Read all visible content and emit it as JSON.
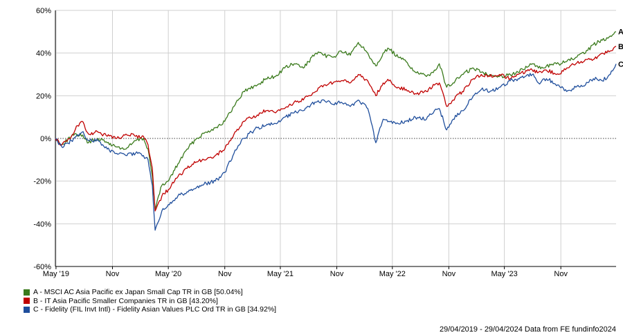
{
  "chart_data": {
    "type": "line",
    "x_range": [
      "2019-04-29",
      "2024-04-29"
    ],
    "ylim": [
      -60,
      60
    ],
    "y_ticks": [
      60,
      40,
      20,
      0,
      -20,
      -40,
      -60
    ],
    "y_tick_labels": [
      "60%",
      "40%",
      "20%",
      "0%",
      "-20%",
      "-40%",
      "-60%"
    ],
    "x_ticks": [
      "2019-05-01",
      "2019-11-01",
      "2020-05-01",
      "2020-11-01",
      "2021-05-01",
      "2021-11-01",
      "2022-05-01",
      "2022-11-01",
      "2023-05-01",
      "2023-11-01"
    ],
    "x_tick_labels": [
      "May '19",
      "Nov",
      "May '20",
      "Nov",
      "May '21",
      "Nov",
      "May '22",
      "Nov",
      "May '23",
      "Nov"
    ],
    "grid": true,
    "zero_line": "dotted",
    "legend_placement": "bottom-left",
    "series": [
      {
        "key": "A",
        "name": "A - MSCI AC Asia Pacific ex Japan Small Cap TR in GB [50.04%]",
        "color": "#3a7a1c",
        "points": [
          [
            "2019-04-29",
            0
          ],
          [
            "2019-05-20",
            -3
          ],
          [
            "2019-06-20",
            1
          ],
          [
            "2019-07-20",
            2
          ],
          [
            "2019-08-15",
            -2
          ],
          [
            "2019-09-15",
            0
          ],
          [
            "2019-10-15",
            -2
          ],
          [
            "2019-11-15",
            -4
          ],
          [
            "2019-12-15",
            -5
          ],
          [
            "2020-01-15",
            -1
          ],
          [
            "2020-02-10",
            0
          ],
          [
            "2020-02-25",
            -5
          ],
          [
            "2020-03-10",
            -18
          ],
          [
            "2020-03-19",
            -33
          ],
          [
            "2020-04-10",
            -22
          ],
          [
            "2020-05-01",
            -20
          ],
          [
            "2020-06-01",
            -12
          ],
          [
            "2020-07-01",
            -5
          ],
          [
            "2020-08-01",
            0
          ],
          [
            "2020-09-01",
            3
          ],
          [
            "2020-10-01",
            5
          ],
          [
            "2020-11-01",
            8
          ],
          [
            "2020-12-01",
            15
          ],
          [
            "2021-01-01",
            22
          ],
          [
            "2021-02-15",
            25
          ],
          [
            "2021-03-15",
            28
          ],
          [
            "2021-04-15",
            29
          ],
          [
            "2021-05-15",
            33
          ],
          [
            "2021-06-15",
            35
          ],
          [
            "2021-07-15",
            33
          ],
          [
            "2021-08-01",
            36
          ],
          [
            "2021-08-25",
            40
          ],
          [
            "2021-09-20",
            39
          ],
          [
            "2021-10-20",
            38
          ],
          [
            "2021-11-15",
            41
          ],
          [
            "2021-12-15",
            39
          ],
          [
            "2022-01-10",
            45
          ],
          [
            "2022-02-10",
            40
          ],
          [
            "2022-03-08",
            34
          ],
          [
            "2022-04-01",
            40
          ],
          [
            "2022-04-20",
            42
          ],
          [
            "2022-05-20",
            38
          ],
          [
            "2022-06-15",
            36
          ],
          [
            "2022-07-15",
            31
          ],
          [
            "2022-08-20",
            29
          ],
          [
            "2022-09-15",
            32
          ],
          [
            "2022-10-01",
            35
          ],
          [
            "2022-10-25",
            24
          ],
          [
            "2022-11-15",
            26
          ],
          [
            "2022-12-15",
            30
          ],
          [
            "2023-01-20",
            33
          ],
          [
            "2023-02-15",
            31
          ],
          [
            "2023-03-15",
            30
          ],
          [
            "2023-04-15",
            29
          ],
          [
            "2023-05-20",
            30
          ],
          [
            "2023-06-15",
            31
          ],
          [
            "2023-07-31",
            35
          ],
          [
            "2023-08-20",
            33
          ],
          [
            "2023-09-15",
            34
          ],
          [
            "2023-10-25",
            35
          ],
          [
            "2023-11-20",
            36
          ],
          [
            "2023-12-20",
            38
          ],
          [
            "2024-01-20",
            40
          ],
          [
            "2024-02-15",
            44
          ],
          [
            "2024-03-15",
            46
          ],
          [
            "2024-04-10",
            48
          ],
          [
            "2024-04-29",
            50.04
          ]
        ]
      },
      {
        "key": "B",
        "name": "B - IT Asia Pacific Smaller Companies TR in GB [43.20%]",
        "color": "#c00000",
        "points": [
          [
            "2019-04-29",
            0
          ],
          [
            "2019-05-20",
            -3
          ],
          [
            "2019-06-20",
            1
          ],
          [
            "2019-07-10",
            6
          ],
          [
            "2019-07-25",
            8
          ],
          [
            "2019-08-15",
            2
          ],
          [
            "2019-09-15",
            3
          ],
          [
            "2019-10-15",
            1
          ],
          [
            "2019-11-15",
            0
          ],
          [
            "2019-12-15",
            2
          ],
          [
            "2020-01-15",
            1
          ],
          [
            "2020-02-10",
            1
          ],
          [
            "2020-02-25",
            -3
          ],
          [
            "2020-03-10",
            -14
          ],
          [
            "2020-03-19",
            -34
          ],
          [
            "2020-04-10",
            -27
          ],
          [
            "2020-05-01",
            -24
          ],
          [
            "2020-06-01",
            -18
          ],
          [
            "2020-07-01",
            -14
          ],
          [
            "2020-08-01",
            -11
          ],
          [
            "2020-09-01",
            -10
          ],
          [
            "2020-10-01",
            -8
          ],
          [
            "2020-11-01",
            -5
          ],
          [
            "2020-12-01",
            2
          ],
          [
            "2021-01-01",
            8
          ],
          [
            "2021-02-15",
            11
          ],
          [
            "2021-03-15",
            13
          ],
          [
            "2021-04-15",
            12
          ],
          [
            "2021-05-15",
            14
          ],
          [
            "2021-06-15",
            17
          ],
          [
            "2021-07-15",
            18
          ],
          [
            "2021-08-01",
            20
          ],
          [
            "2021-08-25",
            22
          ],
          [
            "2021-09-20",
            25
          ],
          [
            "2021-10-20",
            26
          ],
          [
            "2021-11-15",
            27
          ],
          [
            "2021-12-15",
            26
          ],
          [
            "2022-01-10",
            30
          ],
          [
            "2022-02-10",
            27
          ],
          [
            "2022-03-08",
            20
          ],
          [
            "2022-04-01",
            26
          ],
          [
            "2022-04-20",
            27
          ],
          [
            "2022-05-20",
            24
          ],
          [
            "2022-06-15",
            23
          ],
          [
            "2022-07-15",
            21
          ],
          [
            "2022-08-20",
            22
          ],
          [
            "2022-09-15",
            25
          ],
          [
            "2022-10-01",
            26
          ],
          [
            "2022-10-25",
            15
          ],
          [
            "2022-11-15",
            18
          ],
          [
            "2022-12-15",
            22
          ],
          [
            "2023-01-20",
            28
          ],
          [
            "2023-02-15",
            30
          ],
          [
            "2023-03-15",
            29
          ],
          [
            "2023-04-15",
            30
          ],
          [
            "2023-05-20",
            28
          ],
          [
            "2023-06-15",
            30
          ],
          [
            "2023-07-31",
            32
          ],
          [
            "2023-08-20",
            31
          ],
          [
            "2023-09-15",
            32
          ],
          [
            "2023-10-25",
            30
          ],
          [
            "2023-11-20",
            33
          ],
          [
            "2023-12-20",
            35
          ],
          [
            "2024-01-20",
            37
          ],
          [
            "2024-02-15",
            37
          ],
          [
            "2024-03-15",
            40
          ],
          [
            "2024-04-10",
            41
          ],
          [
            "2024-04-29",
            43.2
          ]
        ]
      },
      {
        "key": "C",
        "name": "C - Fidelity (FIL Invt Intl) - Fidelity Asian Values PLC Ord TR in GB [34.92%]",
        "color": "#1f4e9c",
        "points": [
          [
            "2019-04-29",
            0
          ],
          [
            "2019-05-20",
            -4
          ],
          [
            "2019-06-20",
            -1
          ],
          [
            "2019-07-25",
            3
          ],
          [
            "2019-08-15",
            -1
          ],
          [
            "2019-09-15",
            -1
          ],
          [
            "2019-10-15",
            -5
          ],
          [
            "2019-11-15",
            -7
          ],
          [
            "2019-12-15",
            -8
          ],
          [
            "2020-01-15",
            -7
          ],
          [
            "2020-02-10",
            -8
          ],
          [
            "2020-02-25",
            -10
          ],
          [
            "2020-03-10",
            -22
          ],
          [
            "2020-03-19",
            -43
          ],
          [
            "2020-04-10",
            -34
          ],
          [
            "2020-05-01",
            -31
          ],
          [
            "2020-06-01",
            -27
          ],
          [
            "2020-07-01",
            -25
          ],
          [
            "2020-08-01",
            -23
          ],
          [
            "2020-09-01",
            -21
          ],
          [
            "2020-10-01",
            -20
          ],
          [
            "2020-11-01",
            -16
          ],
          [
            "2020-12-01",
            -7
          ],
          [
            "2021-01-01",
            0
          ],
          [
            "2021-02-15",
            5
          ],
          [
            "2021-03-15",
            6
          ],
          [
            "2021-04-15",
            7
          ],
          [
            "2021-05-15",
            10
          ],
          [
            "2021-06-15",
            12
          ],
          [
            "2021-07-15",
            13
          ],
          [
            "2021-08-01",
            15
          ],
          [
            "2021-08-25",
            17
          ],
          [
            "2021-09-20",
            18
          ],
          [
            "2021-10-20",
            16
          ],
          [
            "2021-11-15",
            17
          ],
          [
            "2021-12-15",
            15
          ],
          [
            "2022-01-10",
            18
          ],
          [
            "2022-02-10",
            14
          ],
          [
            "2022-03-08",
            -2
          ],
          [
            "2022-04-01",
            9
          ],
          [
            "2022-04-20",
            8
          ],
          [
            "2022-05-20",
            7
          ],
          [
            "2022-06-15",
            8
          ],
          [
            "2022-07-15",
            10
          ],
          [
            "2022-08-20",
            9
          ],
          [
            "2022-09-15",
            13
          ],
          [
            "2022-10-01",
            14
          ],
          [
            "2022-10-25",
            4
          ],
          [
            "2022-11-15",
            9
          ],
          [
            "2022-12-15",
            13
          ],
          [
            "2023-01-20",
            20
          ],
          [
            "2023-02-15",
            23
          ],
          [
            "2023-03-15",
            22
          ],
          [
            "2023-04-15",
            24
          ],
          [
            "2023-05-20",
            27
          ],
          [
            "2023-06-15",
            28
          ],
          [
            "2023-07-31",
            30
          ],
          [
            "2023-08-20",
            26
          ],
          [
            "2023-09-15",
            28
          ],
          [
            "2023-10-25",
            25
          ],
          [
            "2023-11-20",
            22
          ],
          [
            "2023-12-20",
            24
          ],
          [
            "2024-01-20",
            25
          ],
          [
            "2024-02-15",
            28
          ],
          [
            "2024-03-15",
            27
          ],
          [
            "2024-04-10",
            30
          ],
          [
            "2024-04-29",
            34.92
          ]
        ]
      }
    ]
  },
  "footer": {
    "text": "29/04/2019 - 29/04/2024 Data from FE fundinfo2024"
  }
}
